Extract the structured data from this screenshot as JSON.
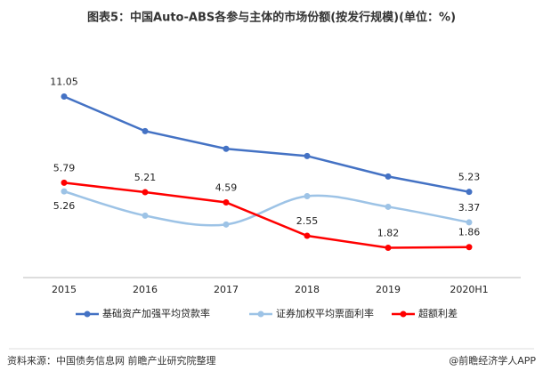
{
  "chart_data": {
    "type": "line",
    "title": "图表5：中国Auto-ABS各参与主体的市场份额(按发行规模)(单位：%)",
    "categories": [
      "2015",
      "2016",
      "2017",
      "2018",
      "2019",
      "2020H1"
    ],
    "ylim": [
      0,
      12
    ],
    "series": [
      {
        "name": "基础资产加强平均贷款率",
        "color": "#4472c4",
        "values": [
          11.05,
          8.94,
          7.86,
          7.42,
          6.17,
          5.23
        ],
        "value_labels": [
          "11.05",
          null,
          null,
          null,
          null,
          "5.23"
        ]
      },
      {
        "name": "证券加权平均票面利率",
        "color": "#9dc3e6",
        "values": [
          5.26,
          3.78,
          3.24,
          4.97,
          4.32,
          3.37
        ],
        "value_labels": [
          "5.26",
          null,
          null,
          null,
          null,
          "3.37"
        ]
      },
      {
        "name": "超额利差",
        "color": "#ff0000",
        "values": [
          5.79,
          5.21,
          4.59,
          2.55,
          1.82,
          1.86
        ],
        "value_labels": [
          "5.79",
          "5.21",
          "4.59",
          "2.55",
          "1.82",
          "1.86"
        ]
      }
    ],
    "source": "资料来源：中国债务信息网 前瞻产业研究院整理",
    "brand": "@前瞻经济学人APP"
  }
}
